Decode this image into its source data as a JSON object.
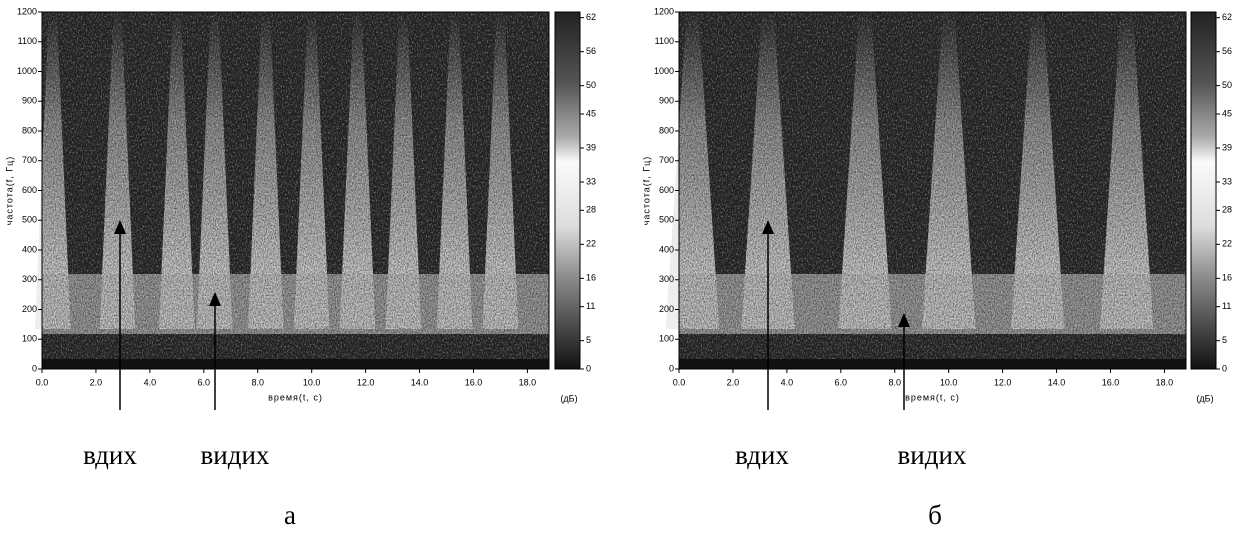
{
  "panels": [
    {
      "label": "а",
      "x_axis_label": "время(t, c)",
      "y_axis_label": "частота(f, Гц)",
      "colorbar_unit": "(дБ)",
      "xlim": [
        0,
        18.8
      ],
      "xticks": [
        {
          "value": 0,
          "label": "0.0"
        },
        {
          "value": 2,
          "label": "2.0"
        },
        {
          "value": 4,
          "label": "4.0"
        },
        {
          "value": 6,
          "label": "6.0"
        },
        {
          "value": 8,
          "label": "8.0"
        },
        {
          "value": 10,
          "label": "10.0"
        },
        {
          "value": 12,
          "label": "12.0"
        },
        {
          "value": 14,
          "label": "14.0"
        },
        {
          "value": 16,
          "label": "16.0"
        },
        {
          "value": 18,
          "label": "18.0"
        }
      ],
      "ylim": [
        0,
        1200
      ],
      "yticks": [
        0,
        100,
        200,
        300,
        400,
        500,
        600,
        700,
        800,
        900,
        1000,
        1100,
        1200
      ],
      "colorbar_lim": [
        0,
        63
      ],
      "colorbar_ticks": [
        0,
        5,
        11,
        16,
        22,
        28,
        33,
        39,
        45,
        50,
        56,
        62
      ],
      "annotations": [
        "вдих",
        "видих"
      ]
    },
    {
      "label": "б",
      "x_axis_label": "время(t, c)",
      "y_axis_label": "частота(f, Гц)",
      "colorbar_unit": "(дБ)",
      "xlim": [
        0,
        18.8
      ],
      "xticks": [
        {
          "value": 0,
          "label": "0.0"
        },
        {
          "value": 2,
          "label": "2.0"
        },
        {
          "value": 4,
          "label": "4.0"
        },
        {
          "value": 6,
          "label": "6.0"
        },
        {
          "value": 8,
          "label": "8.0"
        },
        {
          "value": 10,
          "label": "10.0"
        },
        {
          "value": 12,
          "label": "12.0"
        },
        {
          "value": 14,
          "label": "14.0"
        },
        {
          "value": 16,
          "label": "16.0"
        },
        {
          "value": 18,
          "label": "18.0"
        }
      ],
      "ylim": [
        0,
        1200
      ],
      "yticks": [
        0,
        100,
        200,
        300,
        400,
        500,
        600,
        700,
        800,
        900,
        1000,
        1100,
        1200
      ],
      "colorbar_lim": [
        0,
        63
      ],
      "colorbar_ticks": [
        0,
        5,
        11,
        16,
        22,
        28,
        33,
        39,
        45,
        50,
        56,
        62
      ],
      "annotations": [
        "вдих",
        "видих"
      ]
    }
  ]
}
